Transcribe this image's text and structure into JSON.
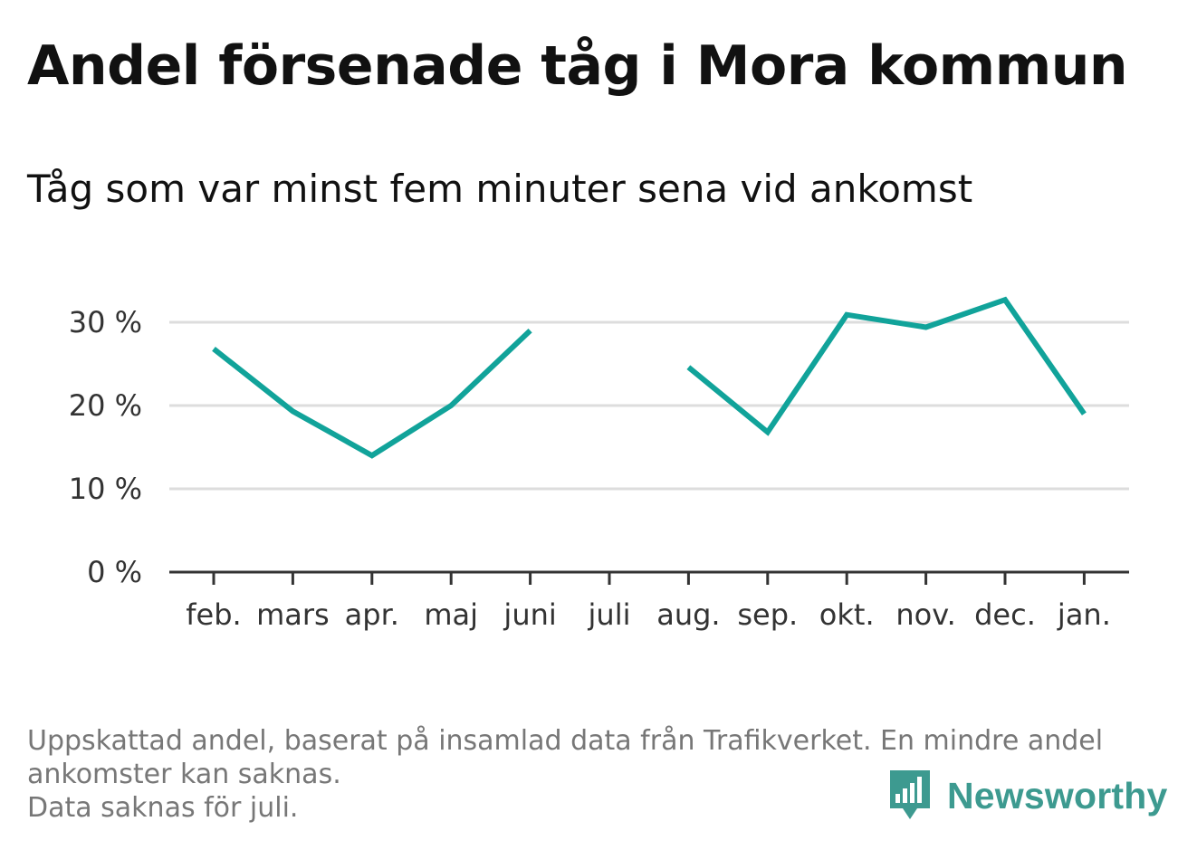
{
  "title": "Andel försenade tåg i Mora kommun",
  "subtitle": "Tåg som var minst fem minuter sena vid ankomst",
  "footnote": {
    "line1": "Uppskattad andel, baserat på insamlad data från Trafikverket. En mindre andel",
    "line2": "ankomster kan saknas.",
    "line3": "Data saknas för juli."
  },
  "brand": {
    "name": "Newsworthy",
    "icon": "newsworthy-logo-icon",
    "color": "#3d9a90"
  },
  "chart_data": {
    "type": "line",
    "title": "Andel försenade tåg i Mora kommun",
    "subtitle": "Tåg som var minst fem minuter sena vid ankomst",
    "xlabel": "",
    "ylabel": "",
    "categories": [
      "feb.",
      "mars",
      "apr.",
      "maj",
      "juni",
      "juli",
      "aug.",
      "sep.",
      "okt.",
      "nov.",
      "dec.",
      "jan."
    ],
    "series": [
      {
        "values": [
          26.8,
          19.3,
          14.0,
          20.0,
          29.0,
          null,
          24.6,
          16.8,
          30.9,
          29.4,
          32.7,
          19.0
        ]
      }
    ],
    "ylim": [
      0,
      35
    ],
    "yticks": [
      0,
      10,
      20,
      30
    ],
    "ytick_labels": [
      "0 %",
      "10 %",
      "20 %",
      "30 %"
    ],
    "grid": true,
    "line_color": "#11a39a",
    "grid_color": "#dddddd",
    "axis_color": "#333333"
  }
}
